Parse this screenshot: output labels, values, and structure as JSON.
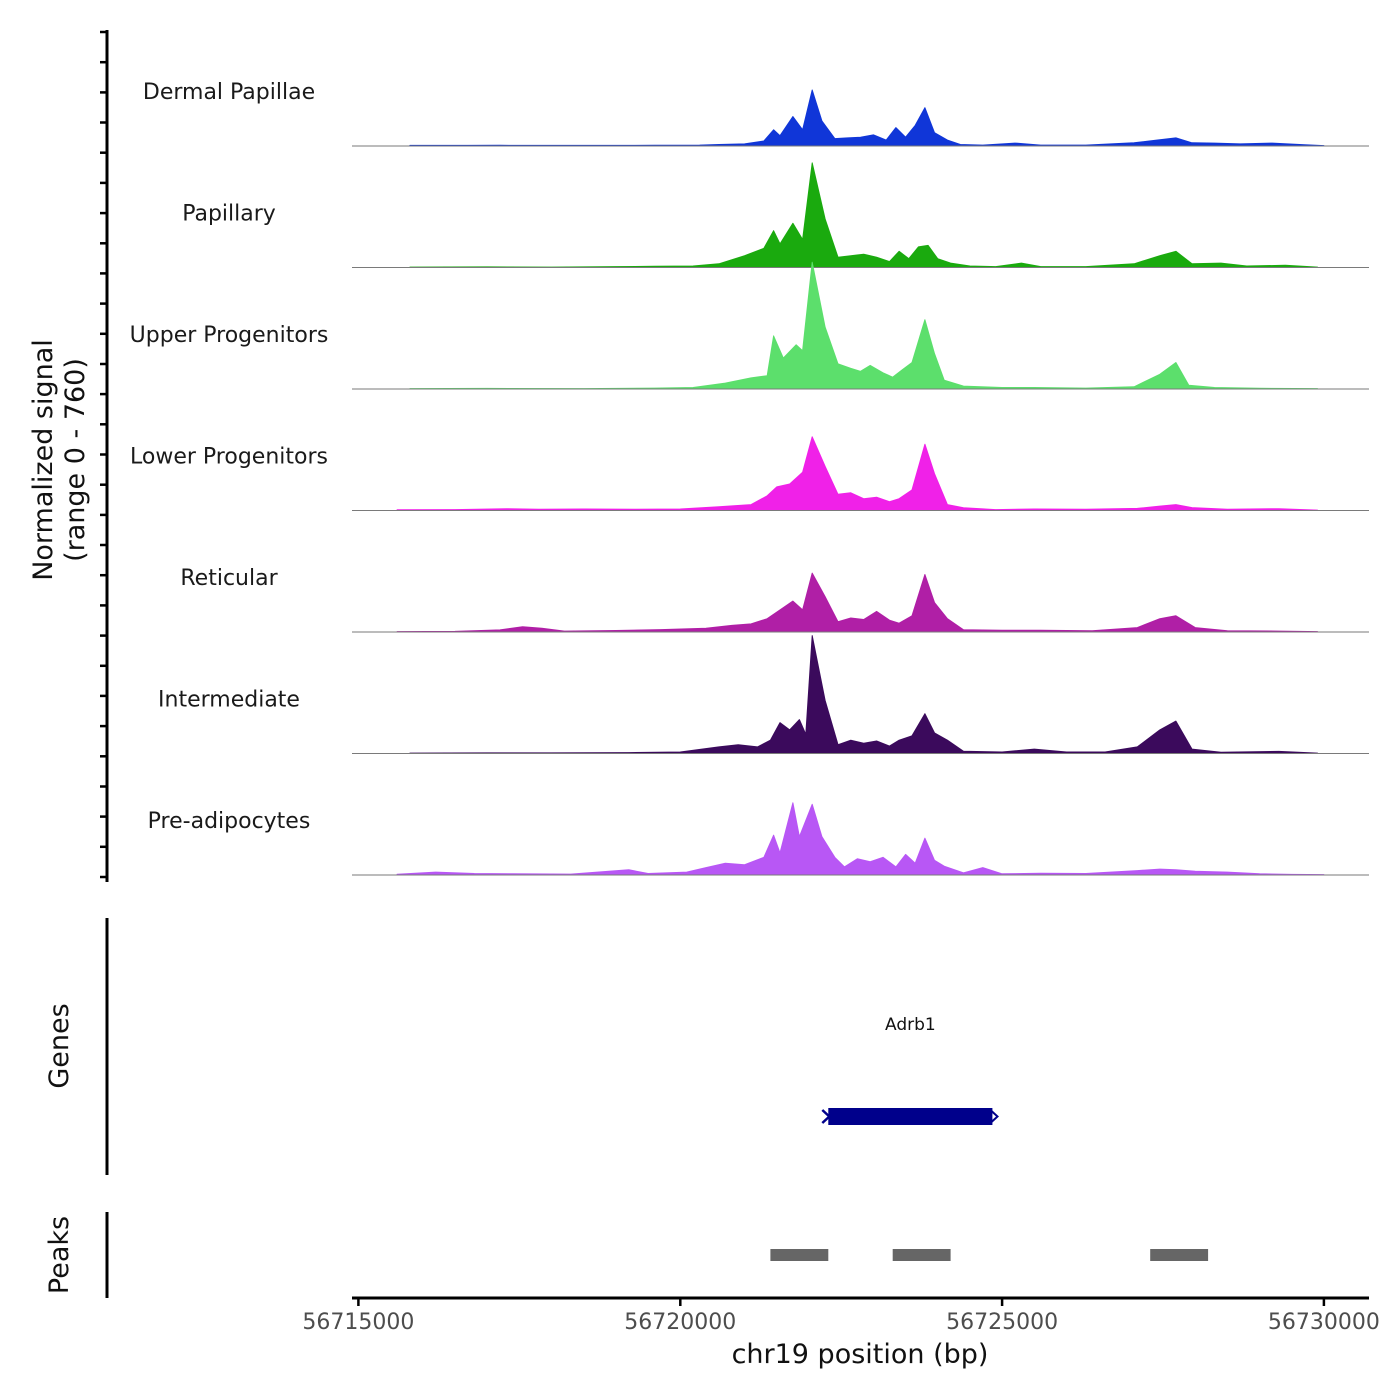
{
  "chart_data": {
    "type": "area",
    "title": "",
    "y_axis_label": "Normalized signal",
    "y_axis_range_label": "(range 0 - 760)",
    "y_range": [
      0,
      760
    ],
    "xlabel": "chr19 position (bp)",
    "xlim": [
      56714900,
      56730700
    ],
    "x_ticks": [
      56715000,
      56720000,
      56725000,
      56730000
    ],
    "x_tick_labels": [
      "56715000",
      "56720000",
      "56725000",
      "56730000"
    ],
    "series": [
      {
        "name": "Dermal Papillae",
        "color": "#1036d8",
        "points": [
          [
            56715800,
            4
          ],
          [
            56716700,
            4
          ],
          [
            56717200,
            5
          ],
          [
            56717700,
            4
          ],
          [
            56718300,
            4
          ],
          [
            56719000,
            4
          ],
          [
            56719600,
            5
          ],
          [
            56720300,
            6
          ],
          [
            56720600,
            10
          ],
          [
            56721000,
            14
          ],
          [
            56721300,
            34
          ],
          [
            56721450,
            110
          ],
          [
            56721550,
            70
          ],
          [
            56721750,
            200
          ],
          [
            56721900,
            110
          ],
          [
            56722050,
            380
          ],
          [
            56722200,
            170
          ],
          [
            56722400,
            50
          ],
          [
            56722600,
            55
          ],
          [
            56722800,
            60
          ],
          [
            56723000,
            75
          ],
          [
            56723200,
            40
          ],
          [
            56723350,
            125
          ],
          [
            56723500,
            60
          ],
          [
            56723650,
            140
          ],
          [
            56723800,
            260
          ],
          [
            56723950,
            90
          ],
          [
            56724150,
            40
          ],
          [
            56724350,
            10
          ],
          [
            56724700,
            6
          ],
          [
            56725200,
            20
          ],
          [
            56725600,
            6
          ],
          [
            56726300,
            6
          ],
          [
            56727050,
            22
          ],
          [
            56727400,
            40
          ],
          [
            56727700,
            55
          ],
          [
            56727950,
            22
          ],
          [
            56728300,
            20
          ],
          [
            56728700,
            14
          ],
          [
            56729200,
            20
          ],
          [
            56729700,
            8
          ],
          [
            56730000,
            3
          ]
        ]
      },
      {
        "name": "Papillary",
        "color": "#1aaa0e",
        "points": [
          [
            56715800,
            3
          ],
          [
            56717000,
            4
          ],
          [
            56718000,
            3
          ],
          [
            56719000,
            6
          ],
          [
            56719600,
            8
          ],
          [
            56720200,
            10
          ],
          [
            56720600,
            25
          ],
          [
            56721000,
            80
          ],
          [
            56721300,
            130
          ],
          [
            56721450,
            250
          ],
          [
            56721550,
            160
          ],
          [
            56721750,
            300
          ],
          [
            56721900,
            190
          ],
          [
            56722050,
            710
          ],
          [
            56722250,
            330
          ],
          [
            56722450,
            70
          ],
          [
            56722650,
            80
          ],
          [
            56722850,
            90
          ],
          [
            56723050,
            70
          ],
          [
            56723250,
            40
          ],
          [
            56723400,
            110
          ],
          [
            56723550,
            60
          ],
          [
            56723700,
            140
          ],
          [
            56723850,
            150
          ],
          [
            56724000,
            60
          ],
          [
            56724200,
            30
          ],
          [
            56724500,
            10
          ],
          [
            56724900,
            6
          ],
          [
            56725300,
            30
          ],
          [
            56725600,
            6
          ],
          [
            56726300,
            6
          ],
          [
            56727050,
            25
          ],
          [
            56727450,
            80
          ],
          [
            56727700,
            110
          ],
          [
            56727950,
            25
          ],
          [
            56728400,
            30
          ],
          [
            56728800,
            10
          ],
          [
            56729400,
            15
          ],
          [
            56729900,
            3
          ]
        ]
      },
      {
        "name": "Upper Progenitors",
        "color": "#5cdf6c",
        "points": [
          [
            56715800,
            3
          ],
          [
            56717000,
            4
          ],
          [
            56718500,
            3
          ],
          [
            56719600,
            6
          ],
          [
            56720200,
            10
          ],
          [
            56720700,
            40
          ],
          [
            56721100,
            75
          ],
          [
            56721350,
            90
          ],
          [
            56721450,
            360
          ],
          [
            56721600,
            210
          ],
          [
            56721800,
            300
          ],
          [
            56721900,
            260
          ],
          [
            56722050,
            860
          ],
          [
            56722250,
            420
          ],
          [
            56722450,
            170
          ],
          [
            56722650,
            140
          ],
          [
            56722800,
            120
          ],
          [
            56722950,
            160
          ],
          [
            56723150,
            110
          ],
          [
            56723300,
            80
          ],
          [
            56723450,
            130
          ],
          [
            56723600,
            180
          ],
          [
            56723800,
            470
          ],
          [
            56723950,
            240
          ],
          [
            56724100,
            60
          ],
          [
            56724400,
            20
          ],
          [
            56725000,
            10
          ],
          [
            56725500,
            10
          ],
          [
            56726300,
            6
          ],
          [
            56727050,
            15
          ],
          [
            56727450,
            100
          ],
          [
            56727700,
            180
          ],
          [
            56727900,
            25
          ],
          [
            56728300,
            10
          ],
          [
            56729000,
            5
          ],
          [
            56729900,
            3
          ]
        ]
      },
      {
        "name": "Lower Progenitors",
        "color": "#f021e8",
        "points": [
          [
            56715600,
            5
          ],
          [
            56716500,
            6
          ],
          [
            56717300,
            12
          ],
          [
            56717800,
            8
          ],
          [
            56718500,
            10
          ],
          [
            56719300,
            8
          ],
          [
            56720000,
            10
          ],
          [
            56720600,
            25
          ],
          [
            56721100,
            40
          ],
          [
            56721350,
            100
          ],
          [
            56721500,
            160
          ],
          [
            56721700,
            180
          ],
          [
            56721900,
            260
          ],
          [
            56722050,
            500
          ],
          [
            56722250,
            300
          ],
          [
            56722450,
            110
          ],
          [
            56722650,
            120
          ],
          [
            56722850,
            80
          ],
          [
            56723050,
            90
          ],
          [
            56723250,
            60
          ],
          [
            56723400,
            80
          ],
          [
            56723600,
            140
          ],
          [
            56723800,
            450
          ],
          [
            56723950,
            250
          ],
          [
            56724150,
            40
          ],
          [
            56724400,
            18
          ],
          [
            56724900,
            6
          ],
          [
            56725500,
            10
          ],
          [
            56726300,
            8
          ],
          [
            56727100,
            14
          ],
          [
            56727450,
            30
          ],
          [
            56727700,
            40
          ],
          [
            56727950,
            20
          ],
          [
            56728500,
            8
          ],
          [
            56729300,
            12
          ],
          [
            56729900,
            3
          ]
        ]
      },
      {
        "name": "Reticular",
        "color": "#b01fa6",
        "points": [
          [
            56715600,
            3
          ],
          [
            56716500,
            4
          ],
          [
            56717200,
            14
          ],
          [
            56717550,
            35
          ],
          [
            56717850,
            25
          ],
          [
            56718200,
            6
          ],
          [
            56719000,
            10
          ],
          [
            56719700,
            16
          ],
          [
            56720400,
            25
          ],
          [
            56720800,
            45
          ],
          [
            56721100,
            55
          ],
          [
            56721350,
            90
          ],
          [
            56721550,
            150
          ],
          [
            56721750,
            210
          ],
          [
            56721900,
            150
          ],
          [
            56722050,
            400
          ],
          [
            56722250,
            240
          ],
          [
            56722450,
            70
          ],
          [
            56722650,
            95
          ],
          [
            56722850,
            85
          ],
          [
            56723050,
            140
          ],
          [
            56723250,
            80
          ],
          [
            56723400,
            60
          ],
          [
            56723600,
            110
          ],
          [
            56723800,
            390
          ],
          [
            56723950,
            200
          ],
          [
            56724150,
            90
          ],
          [
            56724400,
            15
          ],
          [
            56725000,
            12
          ],
          [
            56725600,
            12
          ],
          [
            56726400,
            8
          ],
          [
            56727100,
            30
          ],
          [
            56727450,
            90
          ],
          [
            56727700,
            110
          ],
          [
            56728000,
            30
          ],
          [
            56728500,
            8
          ],
          [
            56729300,
            6
          ],
          [
            56729900,
            3
          ]
        ]
      },
      {
        "name": "Intermediate",
        "color": "#3b0a5c",
        "points": [
          [
            56715800,
            3
          ],
          [
            56717000,
            4
          ],
          [
            56718000,
            4
          ],
          [
            56719200,
            6
          ],
          [
            56720000,
            10
          ],
          [
            56720600,
            45
          ],
          [
            56720900,
            60
          ],
          [
            56721200,
            45
          ],
          [
            56721400,
            90
          ],
          [
            56721550,
            210
          ],
          [
            56721700,
            160
          ],
          [
            56721850,
            230
          ],
          [
            56721950,
            130
          ],
          [
            56722050,
            800
          ],
          [
            56722250,
            360
          ],
          [
            56722450,
            60
          ],
          [
            56722650,
            90
          ],
          [
            56722850,
            70
          ],
          [
            56723050,
            85
          ],
          [
            56723250,
            50
          ],
          [
            56723400,
            90
          ],
          [
            56723600,
            120
          ],
          [
            56723800,
            270
          ],
          [
            56723950,
            140
          ],
          [
            56724150,
            90
          ],
          [
            56724400,
            15
          ],
          [
            56725000,
            10
          ],
          [
            56725500,
            30
          ],
          [
            56726000,
            10
          ],
          [
            56726600,
            10
          ],
          [
            56727100,
            45
          ],
          [
            56727450,
            160
          ],
          [
            56727700,
            220
          ],
          [
            56727950,
            30
          ],
          [
            56728400,
            8
          ],
          [
            56729300,
            14
          ],
          [
            56729900,
            3
          ]
        ]
      },
      {
        "name": "Pre-adipocytes",
        "color": "#b857f5",
        "points": [
          [
            56715600,
            5
          ],
          [
            56716200,
            20
          ],
          [
            56716800,
            10
          ],
          [
            56717400,
            8
          ],
          [
            56718300,
            6
          ],
          [
            56719200,
            35
          ],
          [
            56719500,
            10
          ],
          [
            56720100,
            20
          ],
          [
            56720400,
            50
          ],
          [
            56720700,
            80
          ],
          [
            56721000,
            70
          ],
          [
            56721300,
            120
          ],
          [
            56721450,
            270
          ],
          [
            56721550,
            150
          ],
          [
            56721750,
            490
          ],
          [
            56721850,
            260
          ],
          [
            56722050,
            480
          ],
          [
            56722200,
            260
          ],
          [
            56722400,
            120
          ],
          [
            56722550,
            55
          ],
          [
            56722750,
            110
          ],
          [
            56722950,
            90
          ],
          [
            56723150,
            120
          ],
          [
            56723350,
            55
          ],
          [
            56723500,
            140
          ],
          [
            56723650,
            80
          ],
          [
            56723800,
            250
          ],
          [
            56723950,
            100
          ],
          [
            56724100,
            60
          ],
          [
            56724400,
            15
          ],
          [
            56724700,
            50
          ],
          [
            56725000,
            8
          ],
          [
            56725600,
            12
          ],
          [
            56726300,
            10
          ],
          [
            56727100,
            30
          ],
          [
            56727450,
            40
          ],
          [
            56727700,
            35
          ],
          [
            56728000,
            25
          ],
          [
            56728500,
            20
          ],
          [
            56729000,
            8
          ],
          [
            56729500,
            4
          ],
          [
            56730000,
            3
          ]
        ]
      }
    ],
    "genes": {
      "label": "Genes",
      "items": [
        {
          "name": "Adrb1",
          "start": 56722300,
          "end": 56724850,
          "strand": "+",
          "color": "#00008b"
        }
      ]
    },
    "peaks": {
      "label": "Peaks",
      "color": "#666666",
      "items": [
        [
          56721400,
          56722300
        ],
        [
          56723300,
          56724200
        ],
        [
          56727300,
          56728200
        ]
      ]
    }
  }
}
